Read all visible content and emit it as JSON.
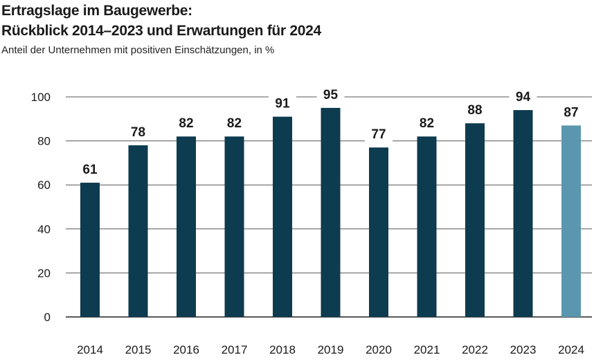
{
  "chart_data": {
    "type": "bar",
    "title": "Ertragslage im Baugewerbe:",
    "title_line2": "Rückblick 2014–2023 und Erwartungen für 2024",
    "subtitle": "Anteil der Unternehmen mit positiven Einschätzungen, in %",
    "categories": [
      "2014",
      "2015",
      "2016",
      "2017",
      "2018",
      "2019",
      "2020",
      "2021",
      "2022",
      "2023",
      "2024"
    ],
    "values": [
      61,
      78,
      82,
      82,
      91,
      95,
      77,
      82,
      88,
      94,
      87
    ],
    "data_labels": [
      "61",
      "78",
      "82",
      "82",
      "91",
      "95",
      "77",
      "82",
      "88",
      "94",
      "87"
    ],
    "yticks": [
      "0",
      "20",
      "40",
      "60",
      "80",
      "100"
    ],
    "ylim": [
      0,
      100
    ],
    "grid": true,
    "colors": {
      "bar": "#0d3b4f",
      "highlight": "#5a97ae"
    },
    "highlight_category": "2024"
  }
}
